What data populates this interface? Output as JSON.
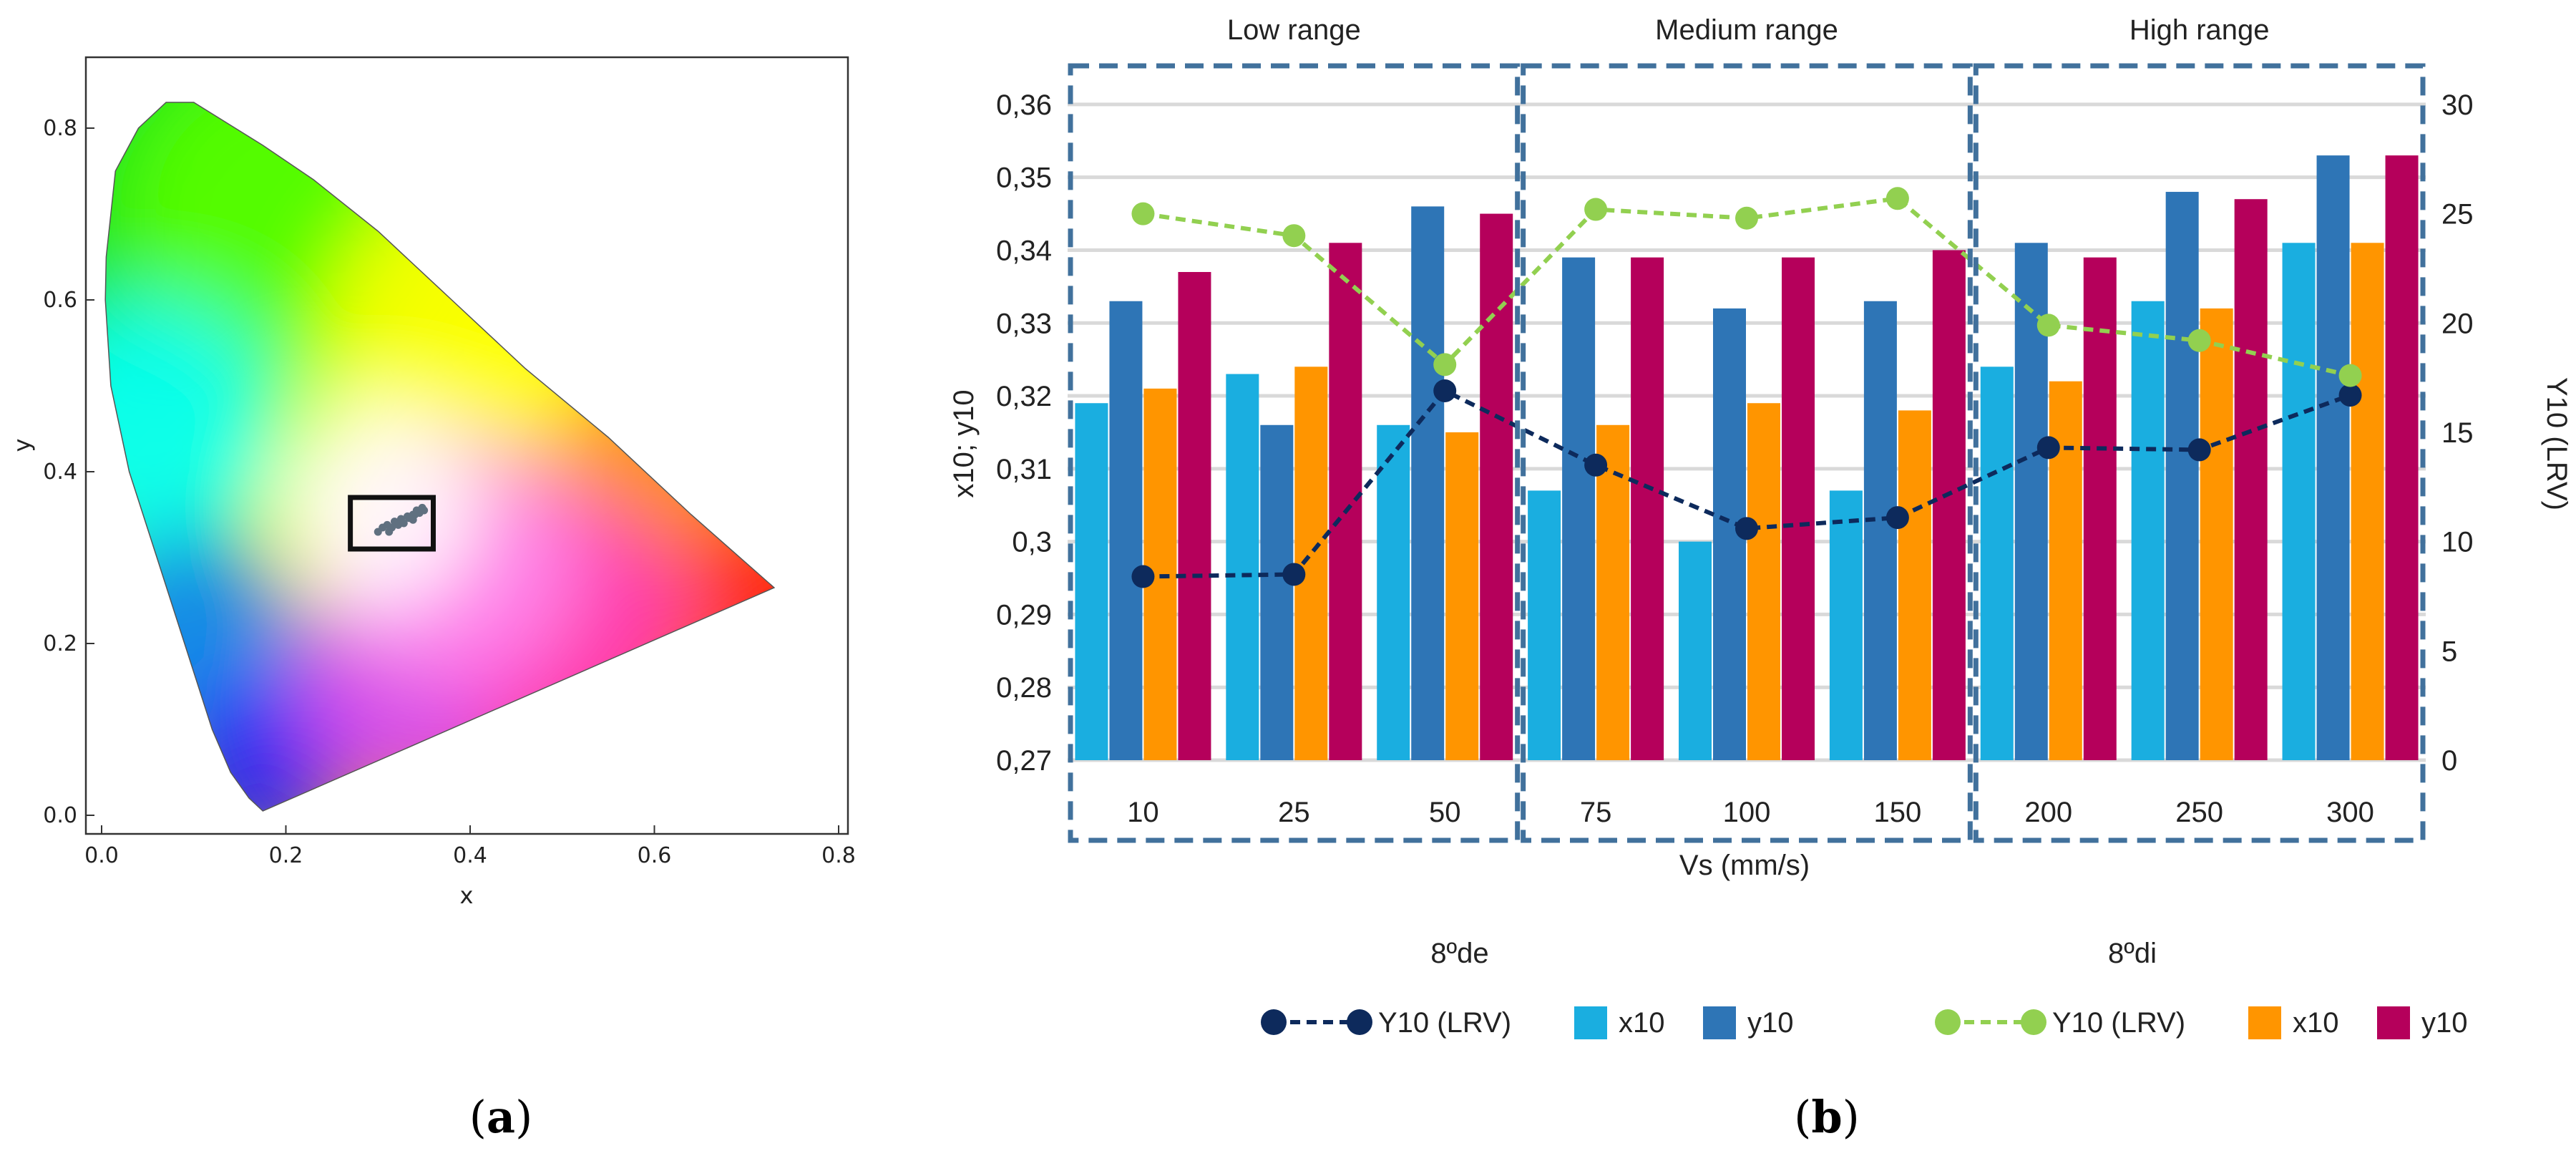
{
  "panels": {
    "a": {
      "label_open": "(",
      "label_letter": "a",
      "label_close": ")"
    },
    "b": {
      "label_open": "(",
      "label_letter": "b",
      "label_close": ")"
    }
  },
  "colors": {
    "de_y10": "#0d2a5c",
    "di_y10": "#92d050",
    "de_x10": "#1aaee0",
    "de_y10_bar": "#2e75b6",
    "di_x10": "#ff9500",
    "di_y10_bar": "#b5005b",
    "box": "#41719c",
    "grid": "#d9d9d9"
  },
  "chart_data": [
    {
      "id": "cie-diagram",
      "type": "scatter",
      "title": "",
      "xlabel": "x",
      "ylabel": "y",
      "xlim": [
        0.0,
        0.8
      ],
      "ylim": [
        0.0,
        0.85
      ],
      "xticks": [
        "0.0",
        "0.2",
        "0.4",
        "0.6",
        "0.8"
      ],
      "yticks": [
        "0.0",
        "0.2",
        "0.4",
        "0.6",
        "0.8"
      ],
      "xtick_values": [
        0.0,
        0.2,
        0.4,
        0.6,
        0.8
      ],
      "ytick_values": [
        0.0,
        0.2,
        0.4,
        0.6,
        0.8
      ],
      "locus": [
        [
          0.175,
          0.005
        ],
        [
          0.16,
          0.02
        ],
        [
          0.14,
          0.05
        ],
        [
          0.12,
          0.1
        ],
        [
          0.09,
          0.2
        ],
        [
          0.06,
          0.3
        ],
        [
          0.03,
          0.4
        ],
        [
          0.01,
          0.5
        ],
        [
          0.004,
          0.6
        ],
        [
          0.005,
          0.65
        ],
        [
          0.01,
          0.7
        ],
        [
          0.015,
          0.75
        ],
        [
          0.04,
          0.8
        ],
        [
          0.07,
          0.83
        ],
        [
          0.1,
          0.83
        ],
        [
          0.13,
          0.81
        ],
        [
          0.175,
          0.78
        ],
        [
          0.23,
          0.74
        ],
        [
          0.3,
          0.68
        ],
        [
          0.38,
          0.6
        ],
        [
          0.46,
          0.52
        ],
        [
          0.55,
          0.44
        ],
        [
          0.64,
          0.35
        ],
        [
          0.73,
          0.265
        ]
      ],
      "points": [
        [
          0.3,
          0.33
        ],
        [
          0.305,
          0.335
        ],
        [
          0.31,
          0.338
        ],
        [
          0.318,
          0.342
        ],
        [
          0.325,
          0.345
        ],
        [
          0.332,
          0.348
        ],
        [
          0.338,
          0.35
        ],
        [
          0.345,
          0.352
        ],
        [
          0.35,
          0.355
        ],
        [
          0.315,
          0.335
        ],
        [
          0.328,
          0.34
        ],
        [
          0.338,
          0.344
        ],
        [
          0.34,
          0.35
        ],
        [
          0.312,
          0.33
        ],
        [
          0.322,
          0.338
        ],
        [
          0.334,
          0.346
        ],
        [
          0.342,
          0.355
        ],
        [
          0.348,
          0.358
        ]
      ],
      "highlight_box": {
        "x": [
          0.27,
          0.36
        ],
        "y": [
          0.31,
          0.37
        ]
      }
    },
    {
      "id": "bar-line-chart",
      "type": "bar",
      "xlabel": "Vs (mm/s)",
      "ylabel": "x10; y10",
      "y2label": "Y10 (LRV)",
      "categories": [
        "10",
        "25",
        "50",
        "75",
        "100",
        "150",
        "200",
        "250",
        "300"
      ],
      "ylim": [
        0.27,
        0.365
      ],
      "yticks": [
        "0,27",
        "0,28",
        "0,29",
        "0,3",
        "0,31",
        "0,32",
        "0,33",
        "0,34",
        "0,35",
        "0,36"
      ],
      "ytick_values": [
        0.27,
        0.28,
        0.29,
        0.3,
        0.31,
        0.32,
        0.33,
        0.34,
        0.35,
        0.36
      ],
      "y2lim": [
        0,
        31.67
      ],
      "y2ticks": [
        "0",
        "5",
        "10",
        "15",
        "20",
        "25",
        "30"
      ],
      "y2tick_values": [
        0,
        5,
        10,
        15,
        20,
        25,
        30
      ],
      "groups": [
        {
          "label": "Low range",
          "categories": [
            "10",
            "25",
            "50"
          ]
        },
        {
          "label": "Medium range",
          "categories": [
            "75",
            "100",
            "150"
          ]
        },
        {
          "label": "High range",
          "categories": [
            "200",
            "250",
            "300"
          ]
        }
      ],
      "series": [
        {
          "name": "x10",
          "set": "8ºde",
          "kind": "bar",
          "color": "#1aaee0",
          "values": [
            0.319,
            0.323,
            0.316,
            0.307,
            0.3,
            0.307,
            0.324,
            0.333,
            0.341
          ]
        },
        {
          "name": "y10",
          "set": "8ºde",
          "kind": "bar",
          "color": "#2e75b6",
          "values": [
            0.333,
            0.316,
            0.346,
            0.339,
            0.332,
            0.333,
            0.341,
            0.348,
            0.353
          ]
        },
        {
          "name": "x10",
          "set": "8ºdi",
          "kind": "bar",
          "color": "#ff9500",
          "values": [
            0.321,
            0.324,
            0.315,
            0.316,
            0.319,
            0.318,
            0.322,
            0.332,
            0.341
          ]
        },
        {
          "name": "y10",
          "set": "8ºdi",
          "kind": "bar",
          "color": "#b5005b",
          "values": [
            0.337,
            0.341,
            0.345,
            0.339,
            0.339,
            0.34,
            0.339,
            0.347,
            0.353
          ]
        },
        {
          "name": "Y10 (LRV)",
          "set": "8ºde",
          "kind": "line",
          "axis": "right",
          "color": "#0d2a5c",
          "values": [
            8.4,
            8.5,
            16.9,
            13.5,
            10.6,
            11.1,
            14.3,
            14.2,
            16.7
          ]
        },
        {
          "name": "Y10 (LRV)",
          "set": "8ºdi",
          "kind": "line",
          "axis": "right",
          "color": "#92d050",
          "values": [
            25.0,
            24.0,
            18.1,
            25.2,
            24.8,
            25.7,
            19.9,
            19.2,
            17.6
          ]
        }
      ],
      "legend": {
        "groups": [
          {
            "title": "8ºde",
            "items": [
              "Y10 (LRV)",
              "x10",
              "y10"
            ]
          },
          {
            "title": "8ºdi",
            "items": [
              "Y10 (LRV)",
              "x10",
              "y10"
            ]
          }
        ],
        "placement": "bottom"
      }
    }
  ]
}
